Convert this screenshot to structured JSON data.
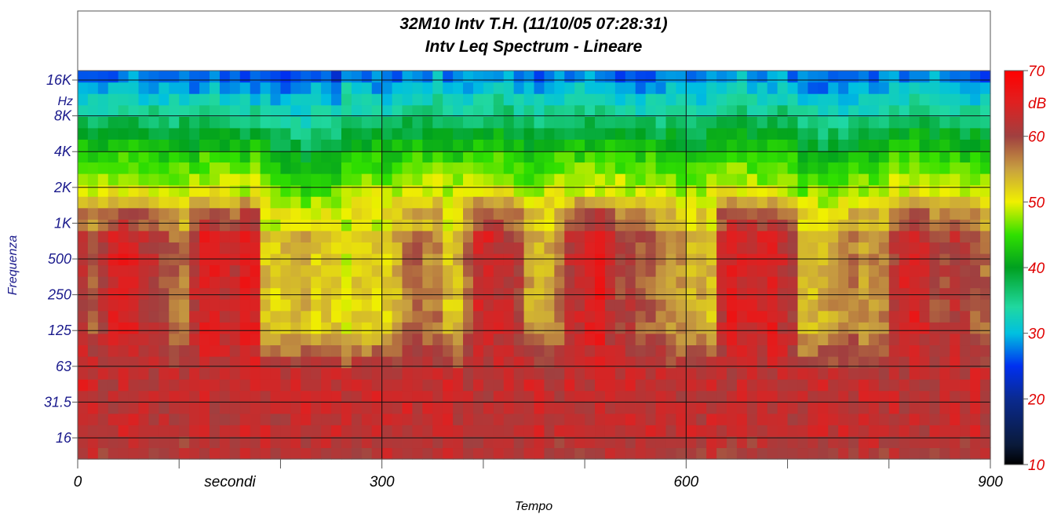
{
  "chart_data": {
    "type": "heatmap",
    "title": "32M10 Intv T.H. (11/10/05 07:28:31)",
    "subtitle": "Intv Leq Spectrum - Lineare",
    "xlabel": "Tempo",
    "ylabel": "Frequenza",
    "x_unit_label": "secondi",
    "y_unit_label": "Hz",
    "xlim": [
      0,
      900
    ],
    "x_ticks": [
      "0",
      "300",
      "600",
      "900"
    ],
    "x_minor_step": 100,
    "y_ticks": [
      "16K",
      "8K",
      "4K",
      "2K",
      "1K",
      "500",
      "250",
      "125",
      "63",
      "31.5",
      "16"
    ],
    "colorbar": {
      "unit": "dB",
      "range": [
        10,
        70
      ],
      "ticks": [
        "70",
        "60",
        "50",
        "40",
        "30",
        "20",
        "10"
      ]
    },
    "bands_count": 34,
    "time_step_s": 10,
    "colors": {
      "ytick": "#1a1a8c",
      "colorbar_text": "#e00000",
      "frame": "#555555"
    },
    "low_freq_level_db": [
      64,
      63,
      62,
      62,
      63,
      63,
      62,
      62,
      62,
      62,
      62,
      62,
      63,
      62,
      62,
      62,
      63,
      63,
      63,
      62,
      62,
      63,
      63,
      63,
      63,
      63,
      62,
      63,
      62,
      63,
      63,
      62,
      63,
      63,
      63,
      63,
      63,
      62,
      62,
      62,
      62,
      62,
      63,
      63,
      63,
      63,
      62,
      62,
      63,
      62,
      62,
      63,
      63,
      63,
      63,
      62,
      63,
      63,
      62,
      62,
      63,
      62,
      63,
      62,
      62,
      63,
      62,
      62,
      62,
      62,
      62,
      62,
      63,
      63,
      62,
      63,
      62,
      63,
      63,
      62,
      63,
      62,
      63,
      62,
      62,
      62,
      63,
      62,
      63,
      62
    ],
    "mid_freq_level_db": [
      61,
      59,
      61,
      64,
      65,
      64,
      62,
      62,
      60,
      58,
      57,
      62,
      65,
      65,
      63,
      62,
      66,
      65,
      53,
      52,
      53,
      53,
      54,
      52,
      53,
      52,
      50,
      52,
      52,
      52,
      52,
      54,
      57,
      58,
      56,
      57,
      53,
      53,
      58,
      63,
      64,
      63,
      62,
      60,
      55,
      54,
      54,
      57,
      62,
      63,
      65,
      66,
      62,
      60,
      61,
      59,
      58,
      57,
      56,
      55,
      54,
      54,
      53,
      62,
      65,
      64,
      64,
      64,
      65,
      63,
      61,
      53,
      53,
      54,
      55,
      55,
      57,
      55,
      56,
      57,
      61,
      64,
      65,
      63,
      60,
      60,
      62,
      60,
      59,
      58
    ],
    "high_freq_level_db": [
      50,
      49,
      49,
      50,
      50,
      51,
      50,
      50,
      49,
      49,
      50,
      49,
      50,
      50,
      50,
      50,
      49,
      50,
      48,
      47,
      46,
      46,
      44,
      45,
      45,
      46,
      48,
      49,
      49,
      49,
      48,
      49,
      50,
      50,
      50,
      50,
      49,
      49,
      50,
      50,
      50,
      50,
      50,
      49,
      48,
      48,
      49,
      50,
      50,
      50,
      50,
      50,
      50,
      50,
      49,
      49,
      50,
      49,
      49,
      48,
      48,
      48,
      49,
      50,
      50,
      50,
      50,
      49,
      50,
      50,
      49,
      47,
      47,
      46,
      47,
      47,
      48,
      48,
      48,
      49,
      50,
      50,
      51,
      50,
      50,
      50,
      49,
      49,
      50,
      49
    ],
    "top_band_level_db": [
      26,
      26,
      27,
      27,
      28,
      28,
      27,
      27,
      27,
      27,
      27,
      26,
      27,
      28,
      27,
      27,
      26,
      26,
      26,
      25,
      25,
      26,
      27,
      28,
      28,
      24,
      30,
      27,
      27,
      27,
      26,
      27,
      28,
      28,
      29,
      30,
      28,
      27,
      28,
      28,
      29,
      30,
      29,
      28,
      27,
      27,
      27,
      28,
      28,
      30,
      29,
      28,
      27,
      27,
      26,
      26,
      27,
      27,
      28,
      28,
      28,
      27,
      28,
      29,
      30,
      30,
      28,
      28,
      28,
      29,
      28,
      27,
      26,
      26,
      26,
      26,
      27,
      27,
      27,
      27,
      28,
      28,
      29,
      30,
      29,
      28,
      28,
      27,
      26,
      26
    ]
  }
}
